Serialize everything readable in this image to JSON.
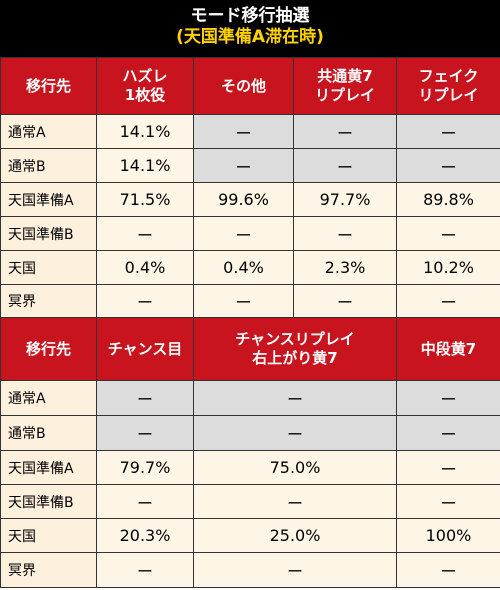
{
  "title": {
    "line1": "モード移行抽選",
    "line2": "(天国準備A滞在時)"
  },
  "table1": {
    "headers": [
      "移行先",
      "ハズレ\n1枚役",
      "その他",
      "共通黄7\nリプレイ",
      "フェイク\nリプレイ"
    ],
    "rows": [
      {
        "label": "通常A",
        "cells": [
          "14.1%",
          "ー",
          "ー",
          "ー"
        ]
      },
      {
        "label": "通常B",
        "cells": [
          "14.1%",
          "ー",
          "ー",
          "ー"
        ]
      },
      {
        "label": "天国準備A",
        "cells": [
          "71.5%",
          "99.6%",
          "97.7%",
          "89.8%"
        ]
      },
      {
        "label": "天国準備B",
        "cells": [
          "ー",
          "ー",
          "ー",
          "ー"
        ]
      },
      {
        "label": "天国",
        "cells": [
          "0.4%",
          "0.4%",
          "2.3%",
          "10.2%"
        ]
      },
      {
        "label": "冥界",
        "cells": [
          "ー",
          "ー",
          "ー",
          "ー"
        ]
      }
    ]
  },
  "table2": {
    "headers": [
      "移行先",
      "チャンス目",
      "チャンスリプレイ\n右上がり黄7",
      "中段黄7"
    ],
    "rows": [
      {
        "label": "通常A",
        "cells": [
          "ー",
          "ー",
          "ー"
        ]
      },
      {
        "label": "通常B",
        "cells": [
          "ー",
          "ー",
          "ー"
        ]
      },
      {
        "label": "天国準備A",
        "cells": [
          "79.7%",
          "75.0%",
          "ー"
        ]
      },
      {
        "label": "天国準備B",
        "cells": [
          "ー",
          "ー",
          "ー"
        ]
      },
      {
        "label": "天国",
        "cells": [
          "20.3%",
          "25.0%",
          "100%"
        ]
      },
      {
        "label": "冥界",
        "cells": [
          "ー",
          "ー",
          "ー"
        ]
      }
    ]
  }
}
